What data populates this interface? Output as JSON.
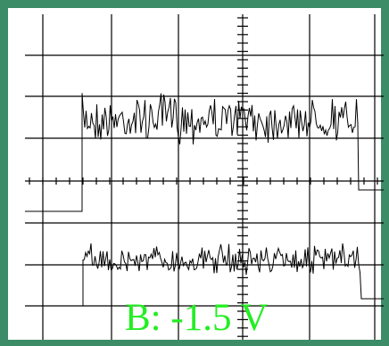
{
  "label": "B: -1.5 V"
}
